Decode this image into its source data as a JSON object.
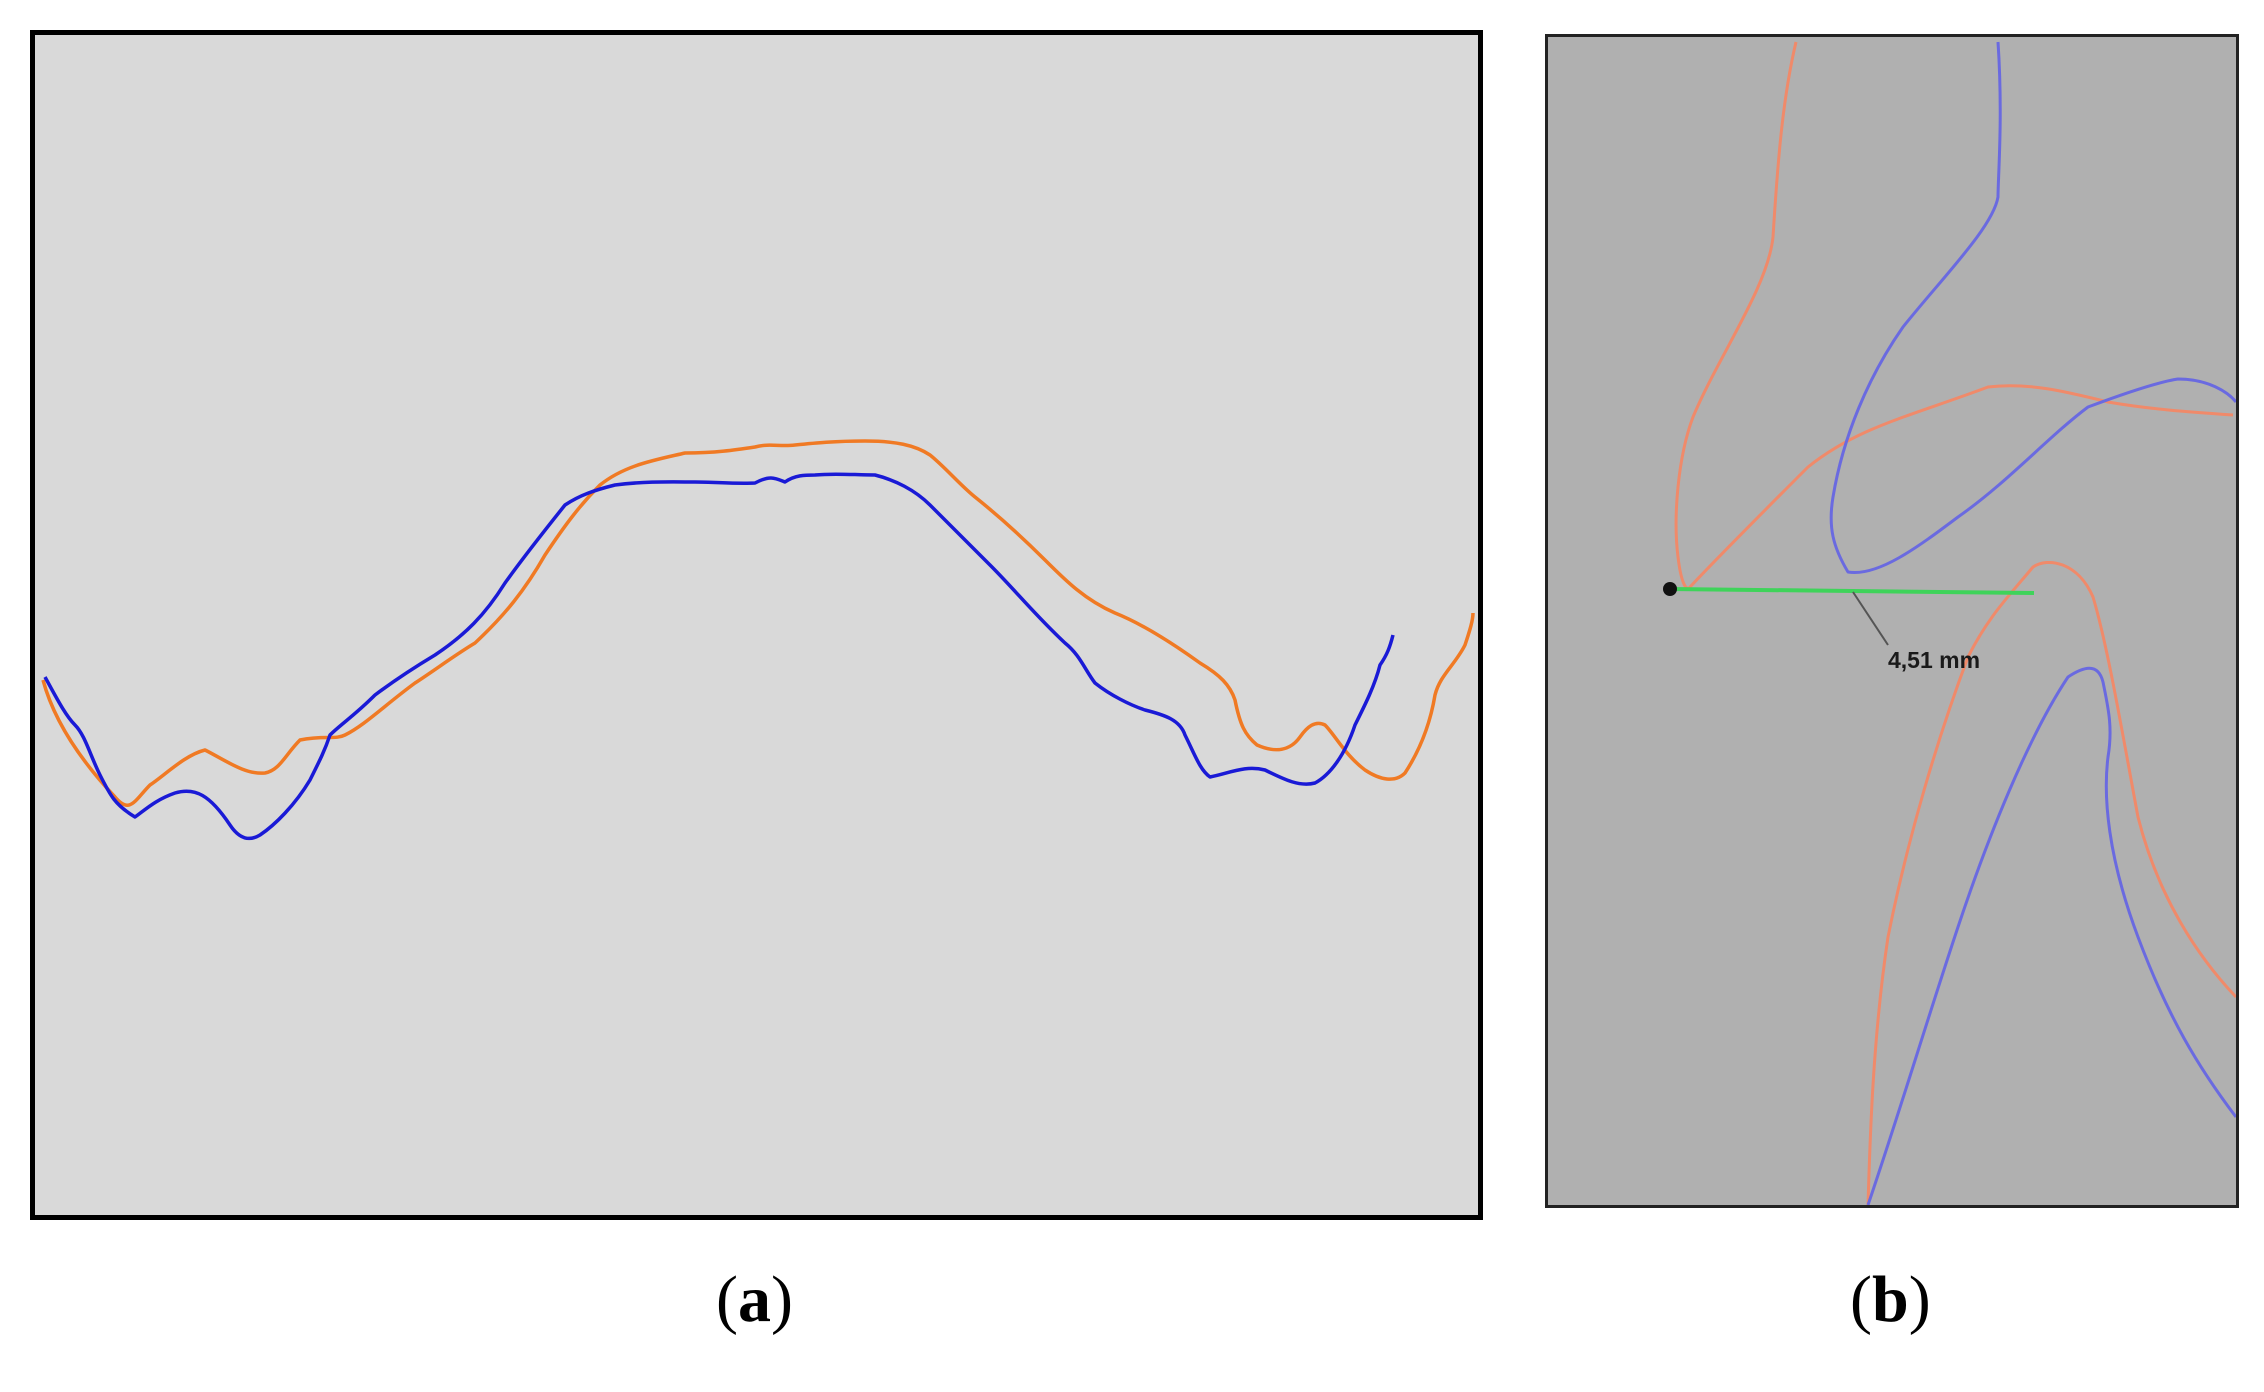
{
  "panel_a": {
    "caption_open": "(",
    "caption_letter": "a",
    "caption_close": ")",
    "colors": {
      "background": "#d9d9d9",
      "curve_1": "#1a1ad6",
      "curve_2": "#f07a24"
    }
  },
  "panel_b": {
    "caption_open": "(",
    "caption_letter": "b",
    "caption_close": ")",
    "measurement_label": "4,51 mm",
    "colors": {
      "background": "#b0b0b0",
      "curve_1": "#6a6ae0",
      "curve_2": "#f08a6a",
      "measure_line": "#3fd35a"
    }
  }
}
